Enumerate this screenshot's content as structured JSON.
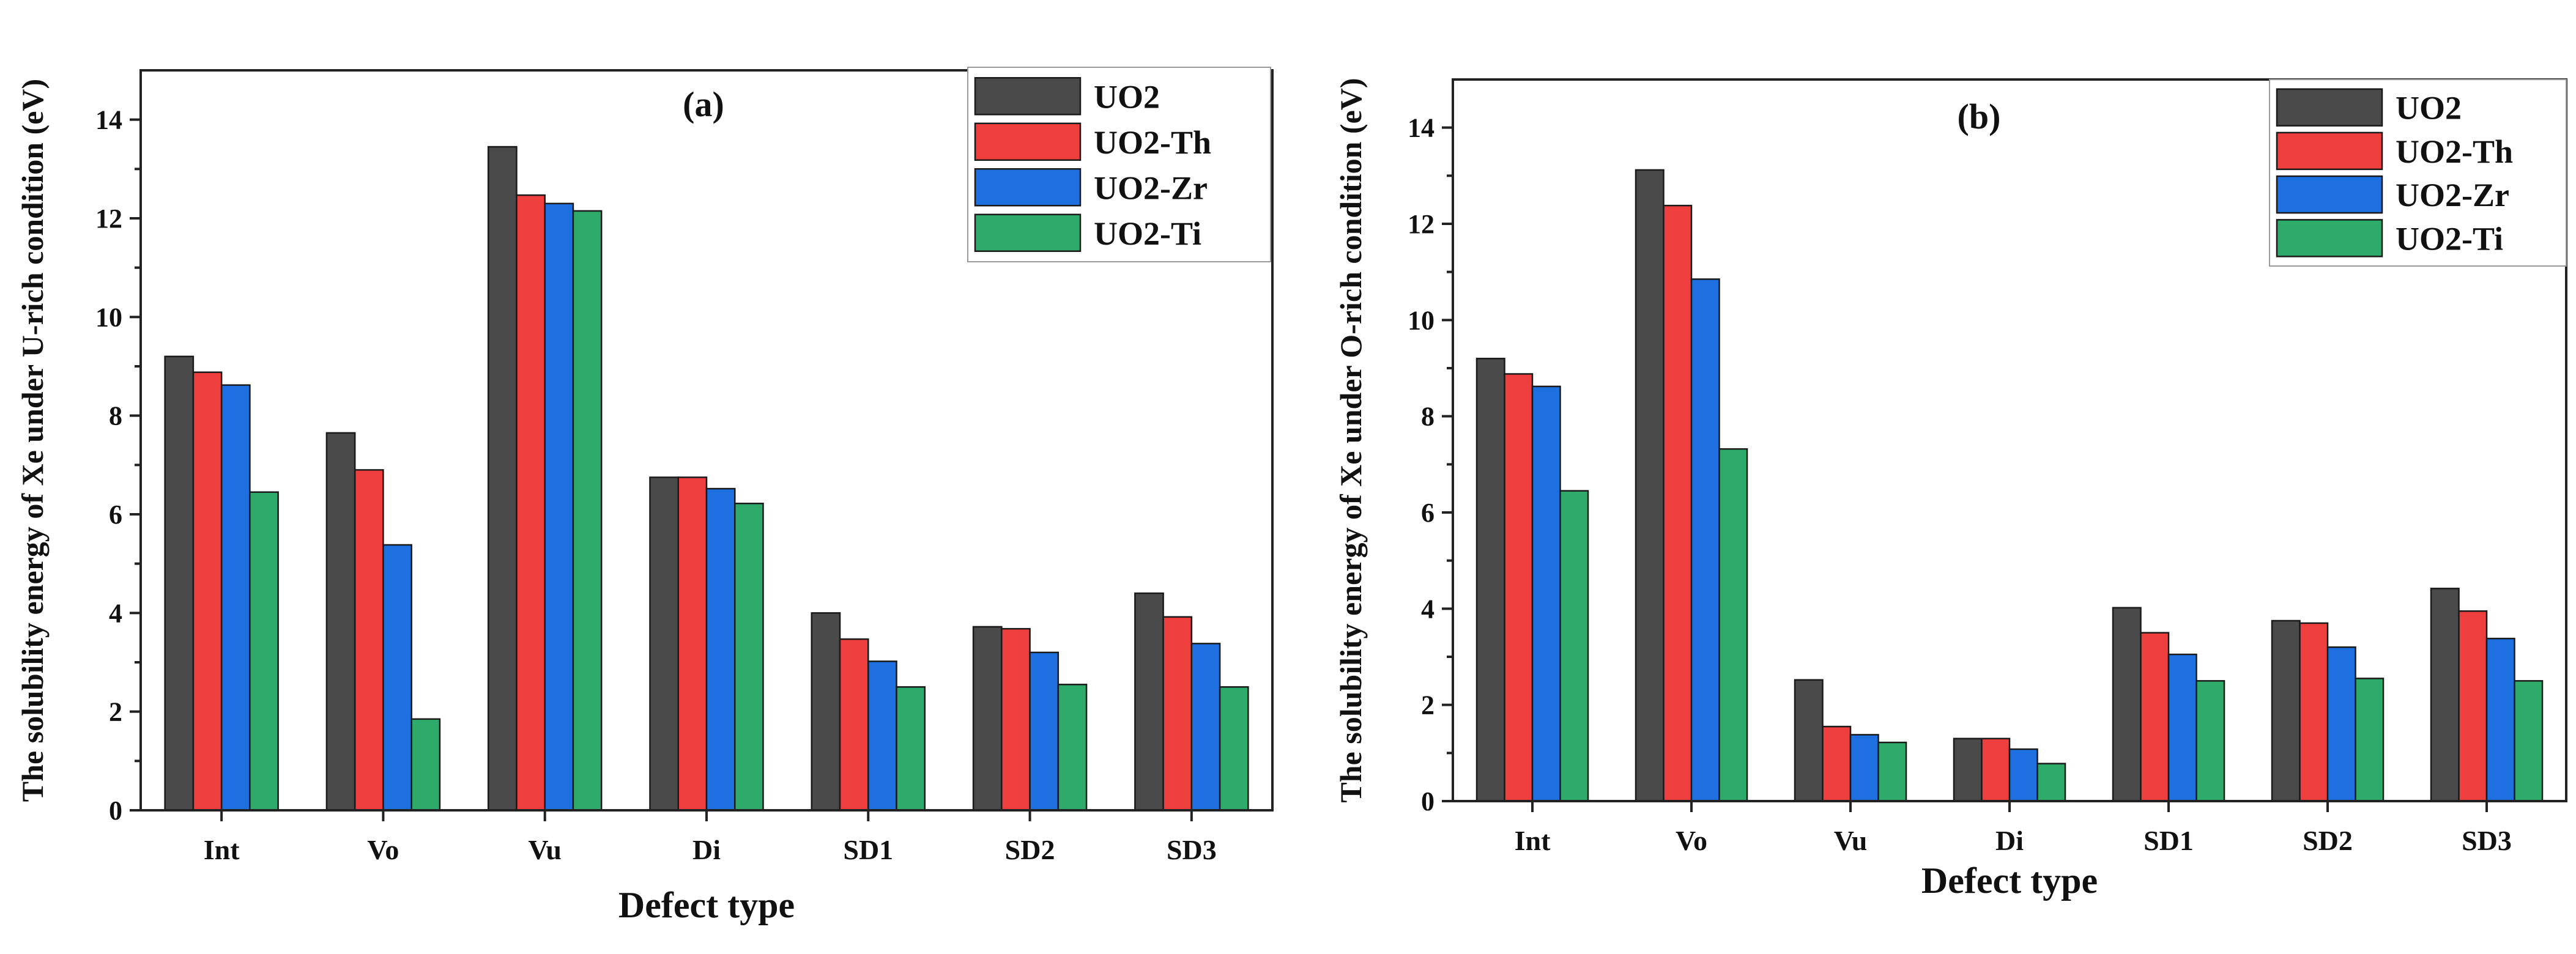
{
  "chart_data": [
    {
      "type": "bar",
      "panel_label": "(a)",
      "title": "",
      "xlabel": "Defect type",
      "ylabel": "The solubility energy of Xe under U-rich condition (eV)",
      "ylim": [
        0,
        15
      ],
      "yticks": [
        0,
        2,
        4,
        6,
        8,
        10,
        12,
        14
      ],
      "grid": false,
      "legend_position": "top-right",
      "categories": [
        "Int",
        "Vo",
        "Vu",
        "Di",
        "SD1",
        "SD2",
        "SD3"
      ],
      "series": [
        {
          "name": "UO2",
          "color": "#4a4a4a",
          "values": [
            9.2,
            7.65,
            13.45,
            6.75,
            4.0,
            3.72,
            4.4
          ]
        },
        {
          "name": "UO2-Th",
          "color": "#ee3e3e",
          "values": [
            8.88,
            6.9,
            12.47,
            6.75,
            3.47,
            3.68,
            3.92
          ]
        },
        {
          "name": "UO2-Zr",
          "color": "#1e6fe0",
          "values": [
            8.62,
            5.38,
            12.3,
            6.52,
            3.02,
            3.2,
            3.38
          ]
        },
        {
          "name": "UO2-Ti",
          "color": "#2eab6a",
          "values": [
            6.45,
            1.85,
            12.15,
            6.22,
            2.5,
            2.55,
            2.5
          ]
        }
      ]
    },
    {
      "type": "bar",
      "panel_label": "(b)",
      "title": "",
      "xlabel": "Defect type",
      "ylabel": "The solubility energy of Xe under O-rich condition (eV)",
      "ylim": [
        0,
        15
      ],
      "yticks": [
        0,
        2,
        4,
        6,
        8,
        10,
        12,
        14
      ],
      "grid": false,
      "legend_position": "top-right",
      "categories": [
        "Int",
        "Vo",
        "Vu",
        "Di",
        "SD1",
        "SD2",
        "SD3"
      ],
      "series": [
        {
          "name": "UO2",
          "color": "#4a4a4a",
          "values": [
            9.2,
            13.12,
            2.52,
            1.3,
            4.02,
            3.75,
            4.42
          ]
        },
        {
          "name": "UO2-Th",
          "color": "#ee3e3e",
          "values": [
            8.88,
            12.38,
            1.55,
            1.3,
            3.5,
            3.7,
            3.95
          ]
        },
        {
          "name": "UO2-Zr",
          "color": "#1e6fe0",
          "values": [
            8.62,
            10.85,
            1.38,
            1.08,
            3.05,
            3.2,
            3.38
          ]
        },
        {
          "name": "UO2-Ti",
          "color": "#2eab6a",
          "values": [
            6.45,
            7.32,
            1.22,
            0.78,
            2.5,
            2.55,
            2.5
          ]
        }
      ]
    }
  ]
}
